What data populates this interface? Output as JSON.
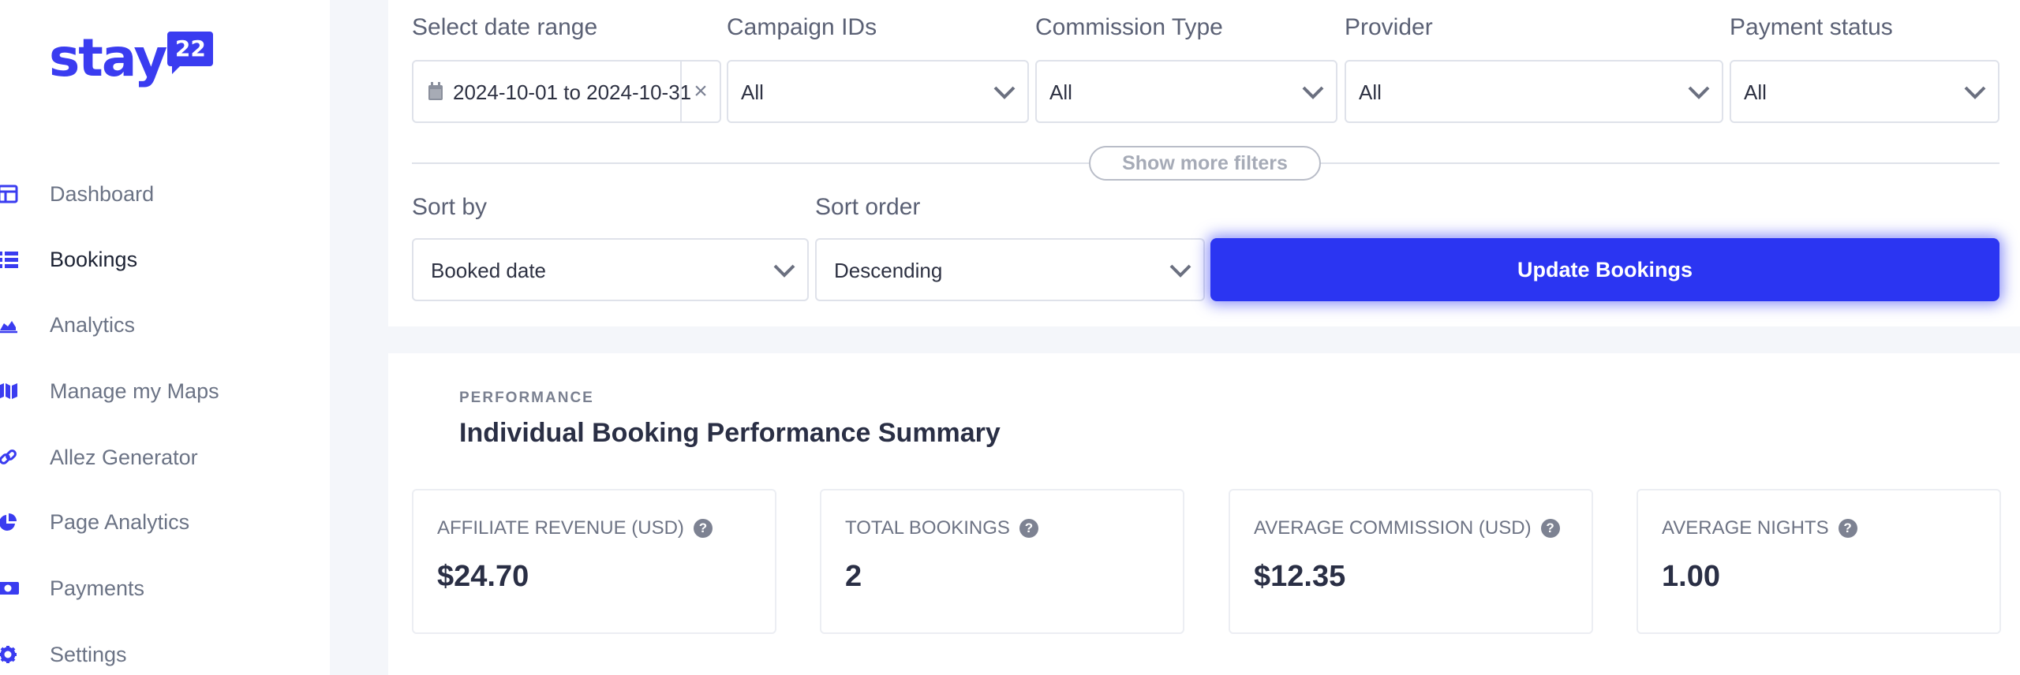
{
  "brand": {
    "name": "stay",
    "badge": "22",
    "color": "#3a3cf0"
  },
  "sidebar": {
    "items": [
      {
        "label": "Dashboard",
        "icon": "dashboard-icon",
        "active": false
      },
      {
        "label": "Bookings",
        "icon": "list-icon",
        "active": true
      },
      {
        "label": "Analytics",
        "icon": "area-chart-icon",
        "active": false
      },
      {
        "label": "Manage my Maps",
        "icon": "map-icon",
        "active": false
      },
      {
        "label": "Allez Generator",
        "icon": "link-icon",
        "active": false
      },
      {
        "label": "Page Analytics",
        "icon": "pie-chart-icon",
        "active": false
      },
      {
        "label": "Payments",
        "icon": "money-icon",
        "active": false
      },
      {
        "label": "Settings",
        "icon": "gear-icon",
        "active": false
      }
    ]
  },
  "filters": {
    "date_range": {
      "label": "Select date range",
      "value": "2024-10-01 to 2024-10-31",
      "clear": "×"
    },
    "campaign_ids": {
      "label": "Campaign IDs",
      "value": "All"
    },
    "commission_type": {
      "label": "Commission Type",
      "value": "All"
    },
    "provider": {
      "label": "Provider",
      "value": "All"
    },
    "payment_status": {
      "label": "Payment status",
      "value": "All"
    },
    "show_more": "Show more filters"
  },
  "sorting": {
    "sort_by": {
      "label": "Sort by",
      "value": "Booked date"
    },
    "sort_order": {
      "label": "Sort order",
      "value": "Descending"
    },
    "update_button": "Update Bookings"
  },
  "performance": {
    "kicker": "PERFORMANCE",
    "title": "Individual Booking Performance Summary",
    "cards": [
      {
        "label": "AFFILIATE REVENUE (USD)",
        "value": "$24.70"
      },
      {
        "label": "TOTAL BOOKINGS",
        "value": "2"
      },
      {
        "label": "AVERAGE COMMISSION (USD)",
        "value": "$12.35"
      },
      {
        "label": "AVERAGE NIGHTS",
        "value": "1.00"
      }
    ],
    "help_glyph": "?"
  }
}
